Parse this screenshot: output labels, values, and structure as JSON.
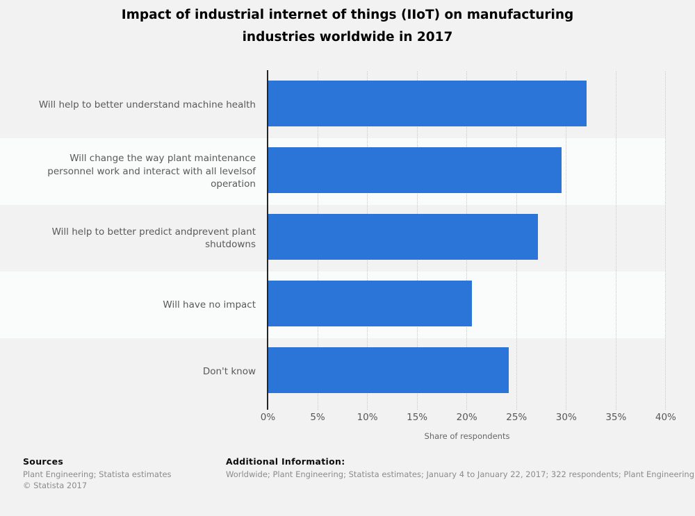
{
  "title": {
    "line1": "Impact of industrial internet of things (IIoT) on manufacturing",
    "line2": "industries worldwide in 2017"
  },
  "chart_data": {
    "type": "bar",
    "orientation": "horizontal",
    "title": "Impact of industrial internet of things (IIoT) on manufacturing industries worldwide in 2017",
    "categories": [
      "Will help to better understand machine health",
      "Will change the way plant maintenance personnel work and interact with all levelsof operation",
      "Will help to better predict andprevent plant shutdowns",
      "Will have no impact",
      "Don't know"
    ],
    "values": [
      32,
      29.5,
      27.1,
      20.5,
      24.2
    ],
    "unit": "%",
    "xlabel": "Share of respondents",
    "ylabel": "",
    "xlim": [
      0,
      40
    ],
    "x_ticks": [
      "0%",
      "5%",
      "10%",
      "15%",
      "20%",
      "25%",
      "30%",
      "35%",
      "40%"
    ],
    "bar_color": "#2b74d8",
    "grid": "vertical-dotted",
    "row_shading": "alternating",
    "legend": "none"
  },
  "footer": {
    "sources_heading": "Sources",
    "sources_line": "Plant Engineering; Statista estimates",
    "copyright": "© Statista 2017",
    "additional_heading": "Additional Information:",
    "additional_text": "Worldwide; Plant Engineering; Statista estimates; January 4 to January 22, 2017; 322 respondents; Plant Engineering"
  }
}
